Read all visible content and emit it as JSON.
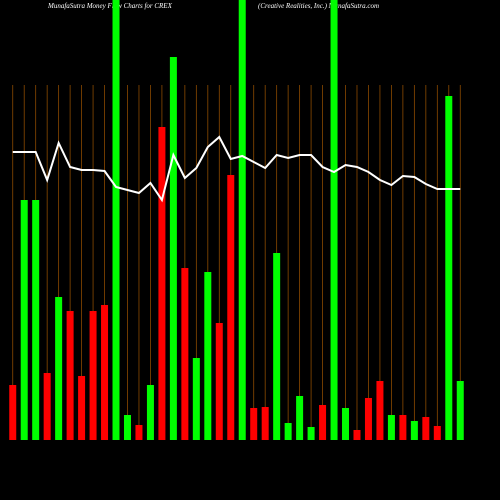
{
  "chart_data": {
    "type": "bar",
    "title": "MunafaSutra  Money Flow  Charts for CREX",
    "subtitle": "(Creative    Realities,    Inc.) MunafaSutra.com",
    "series": [
      {
        "name": "Money flow",
        "colors": [
          "#ff0000",
          "#00ff00",
          "#00ff00",
          "#ff0000",
          "#00ff00",
          "#ff0000",
          "#ff0000",
          "#ff0000",
          "#ff0000",
          "#00ff00",
          "#00ff00",
          "#ff0000",
          "#00ff00",
          "#ff0000",
          "#00ff00",
          "#ff0000",
          "#00ff00",
          "#00ff00",
          "#ff0000",
          "#ff0000",
          "#00ff00",
          "#ff0000",
          "#ff0000",
          "#00ff00",
          "#00ff00",
          "#00ff00",
          "#00ff00",
          "#ff0000",
          "#00ff00",
          "#00ff00",
          "#ff0000",
          "#ff0000",
          "#ff0000",
          "#00ff00",
          "#ff0000",
          "#00ff00",
          "#ff0000",
          "#ff0000",
          "#00ff00",
          "#00ff00"
        ],
        "values": [
          55,
          240,
          240,
          67,
          143,
          129,
          64,
          129,
          135,
          440,
          25,
          15,
          55,
          313,
          383,
          172,
          82,
          168,
          117,
          265,
          440,
          32,
          33,
          187,
          17,
          44,
          13,
          35,
          440,
          32,
          10,
          42,
          59,
          25,
          25,
          19,
          23,
          14,
          344,
          59
        ]
      },
      {
        "name": "Price",
        "color": "#ffffff",
        "values": [
          288,
          288,
          288,
          260,
          297,
          273,
          270,
          270,
          269,
          253,
          250,
          247,
          257,
          240,
          285,
          262,
          272,
          293,
          303,
          281,
          284,
          278,
          272,
          285,
          282,
          285,
          285,
          273,
          268,
          275,
          273,
          268,
          260,
          255,
          264,
          263,
          256,
          251,
          251,
          251
        ]
      }
    ],
    "ylim": [
      0,
      440
    ],
    "grid": true
  }
}
